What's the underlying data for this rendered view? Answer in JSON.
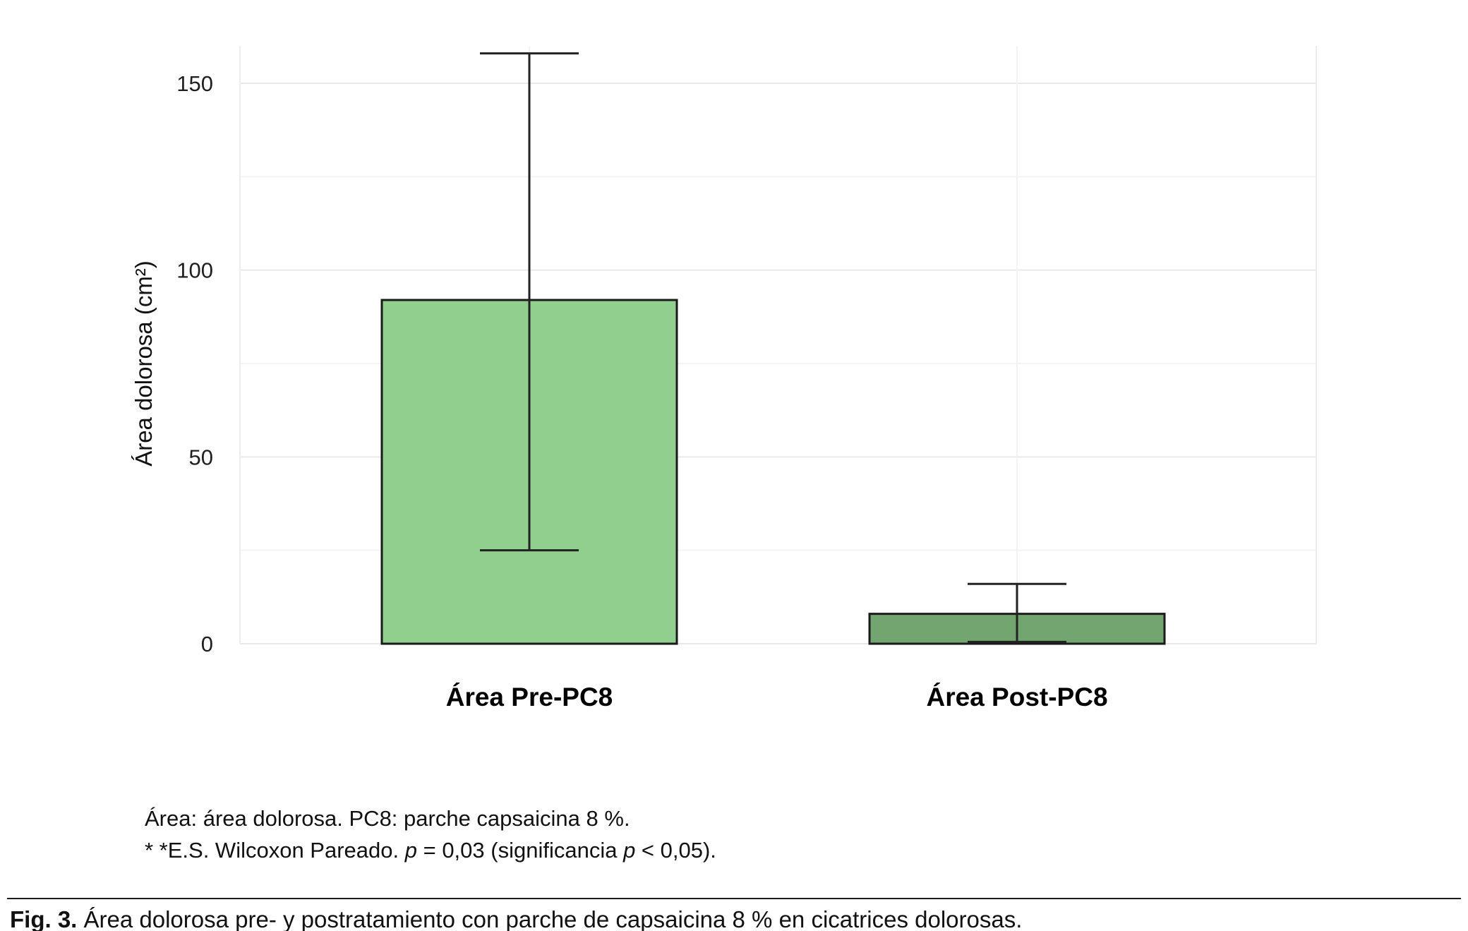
{
  "chart_data": {
    "type": "bar",
    "categories": [
      "Área Pre-PC8",
      "Área Post-PC8"
    ],
    "values": [
      92,
      8
    ],
    "error_low": [
      25,
      0.5
    ],
    "error_high": [
      158,
      16
    ],
    "bar_colors": [
      "#90cf8e",
      "#73a571"
    ],
    "bar_edge_color": "#1a1a1a",
    "error_bar_color": "#222222",
    "title": "",
    "xlabel": "",
    "ylabel": "Área dolorosa (cm²)",
    "ylim": [
      0,
      160
    ],
    "yticks": [
      0,
      50,
      100,
      150
    ],
    "yticks_minor": [
      25,
      75,
      125
    ],
    "grid": true,
    "grid_color": "#e9e9e9",
    "grid_minor_color": "#f4f4f4",
    "legend": "none"
  },
  "footnotes": {
    "line1": "Área: área dolorosa. PC8: parche capsaicina 8 %.",
    "line2": {
      "part1": "* *E.S. Wilcoxon Pareado. ",
      "p1": "p",
      "part2": " = 0,03 (significancia ",
      "p2": "p",
      "part3": " < 0,05)."
    }
  },
  "caption": {
    "label": "Fig. 3.",
    "text": " Área dolorosa pre- y postratamiento con parche de capsaicina 8 % en cicatrices dolorosas."
  }
}
